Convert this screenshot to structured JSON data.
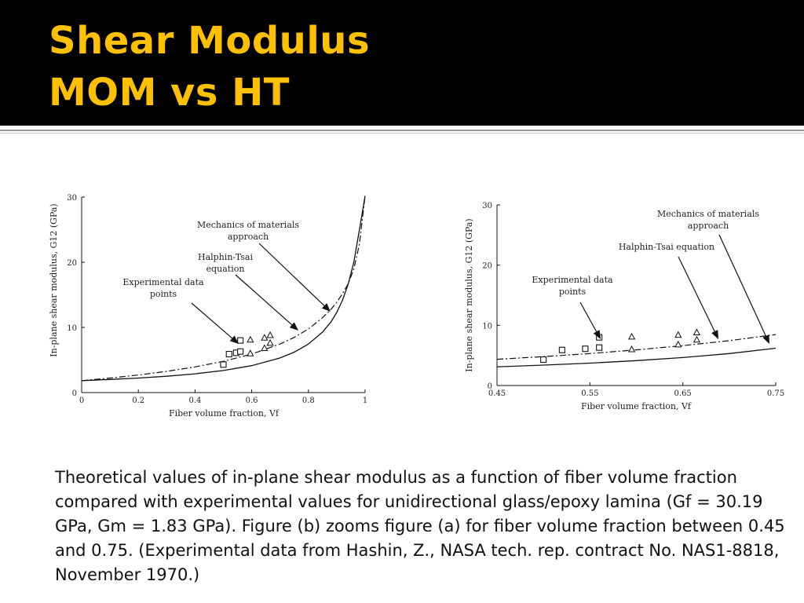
{
  "slide": {
    "title_line1": "Shear Modulus",
    "title_line2": "MOM vs HT",
    "caption": "Theoretical values of in-plane shear modulus as a function of fiber volume fraction compared with experimental values for unidirectional glass/epoxy lamina (Gf = 30.19 GPa, Gm = 1.83 GPa).  Figure (b) zooms figure (a) for fiber volume fraction between 0.45 and 0.75. (Experimental data  from Hashin, Z., NASA tech. rep. contract No. NAS1-8818, November 1970.)"
  },
  "colors": {
    "title": "#ffc000",
    "title_bar": "#000000"
  },
  "chart_data": [
    {
      "type": "line",
      "ylabel": "In-plane shear modulus, G12 (GPa)",
      "xlabel": "Fiber volume fraction, Vf",
      "xlim": [
        0,
        1
      ],
      "ylim": [
        0,
        30
      ],
      "x_ticks": [
        0,
        0.2,
        0.4,
        0.6,
        0.8,
        1
      ],
      "x_tick_labels": [
        "0",
        "0.2",
        "0.4",
        "0.6",
        "0.8",
        "1"
      ],
      "y_ticks": [
        0,
        10,
        20,
        30
      ],
      "y_tick_labels": [
        "0",
        "10",
        "20",
        "30"
      ],
      "series": [
        {
          "style": "solid",
          "x": [
            0,
            0.1,
            0.2,
            0.3,
            0.4,
            0.5,
            0.6,
            0.7,
            0.75,
            0.8,
            0.85,
            0.88,
            0.9,
            0.92,
            0.94,
            0.96,
            0.98,
            1.0
          ],
          "y": [
            1.83,
            2.01,
            2.23,
            2.51,
            2.88,
            3.39,
            4.13,
            5.31,
            6.2,
            7.44,
            9.29,
            10.88,
            12.3,
            14.14,
            16.58,
            19.98,
            25.0,
            30.19
          ]
        },
        {
          "style": "dash-dot",
          "x": [
            0,
            0.1,
            0.2,
            0.3,
            0.4,
            0.5,
            0.6,
            0.7,
            0.75,
            0.8,
            0.85,
            0.88,
            0.9,
            0.92,
            0.94,
            0.96,
            0.98,
            1.0
          ],
          "y": [
            1.83,
            2.23,
            2.7,
            3.25,
            3.94,
            4.8,
            5.92,
            7.45,
            8.47,
            9.77,
            11.48,
            12.8,
            13.87,
            15.14,
            16.66,
            18.94,
            22.8,
            30.19
          ]
        }
      ],
      "points": {
        "squares": [
          [
            0.5,
            4.3
          ],
          [
            0.52,
            5.9
          ],
          [
            0.545,
            6.1
          ],
          [
            0.56,
            6.3
          ],
          [
            0.56,
            8.0
          ]
        ],
        "triangles": [
          [
            0.595,
            8.1
          ],
          [
            0.595,
            6.0
          ],
          [
            0.645,
            8.4
          ],
          [
            0.645,
            6.8
          ],
          [
            0.665,
            8.8
          ],
          [
            0.665,
            7.6
          ]
        ]
      },
      "annotations": [
        {
          "text": [
            "Mechanics of materials",
            "approach"
          ]
        },
        {
          "text": [
            "Halphin-Tsai",
            "equation"
          ]
        },
        {
          "text": [
            "Experimental data",
            "points"
          ]
        }
      ]
    },
    {
      "type": "line",
      "ylabel": "In-plane shear modulus, G12 (GPa)",
      "xlabel": "Fiber volume fraction, Vf",
      "xlim": [
        0.45,
        0.75
      ],
      "ylim": [
        0,
        30
      ],
      "x_ticks": [
        0.45,
        0.55,
        0.65,
        0.75
      ],
      "x_tick_labels": [
        "0.45",
        "0.55",
        "0.65",
        "0.75"
      ],
      "y_ticks": [
        0,
        10,
        20,
        30
      ],
      "y_tick_labels": [
        "0",
        "10",
        "20",
        "30"
      ],
      "series": [
        {
          "style": "solid",
          "x": [
            0.45,
            0.5,
            0.55,
            0.6,
            0.65,
            0.7,
            0.75
          ],
          "y": [
            3.1,
            3.39,
            3.72,
            4.13,
            4.64,
            5.31,
            6.2
          ]
        },
        {
          "style": "dash-dot",
          "x": [
            0.45,
            0.5,
            0.55,
            0.6,
            0.65,
            0.7,
            0.75
          ],
          "y": [
            4.35,
            4.8,
            5.31,
            5.92,
            6.63,
            7.45,
            8.47
          ]
        }
      ],
      "points": {
        "squares": [
          [
            0.5,
            4.3
          ],
          [
            0.52,
            5.9
          ],
          [
            0.545,
            6.1
          ],
          [
            0.56,
            6.3
          ],
          [
            0.56,
            8.0
          ]
        ],
        "triangles": [
          [
            0.595,
            8.1
          ],
          [
            0.595,
            6.0
          ],
          [
            0.645,
            8.4
          ],
          [
            0.645,
            6.8
          ],
          [
            0.665,
            8.8
          ],
          [
            0.665,
            7.6
          ]
        ]
      },
      "annotations": [
        {
          "text": [
            "Mechanics of materials",
            "approach"
          ]
        },
        {
          "text": [
            "Halphin-Tsai equation"
          ]
        },
        {
          "text": [
            "Experimental data",
            "points"
          ]
        }
      ]
    }
  ]
}
